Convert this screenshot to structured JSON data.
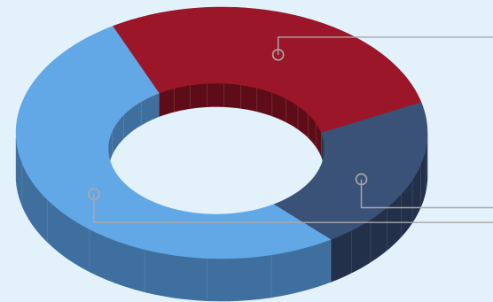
{
  "chart_data": {
    "type": "pie",
    "variant": "3d-doughnut",
    "title": "",
    "legend": "none",
    "slices": [
      {
        "category": "",
        "value": 30,
        "color": "#9a1628",
        "side_color": "#5e0d18"
      },
      {
        "category": "",
        "value": 20,
        "color": "#3a5178",
        "side_color": "#23304a"
      },
      {
        "category": "",
        "value": 50,
        "color": "#62a7e6",
        "side_color": "#3f6f9e"
      }
    ],
    "background_color": "#e3f1fb",
    "leader_line_color": "#a9a9a9"
  }
}
